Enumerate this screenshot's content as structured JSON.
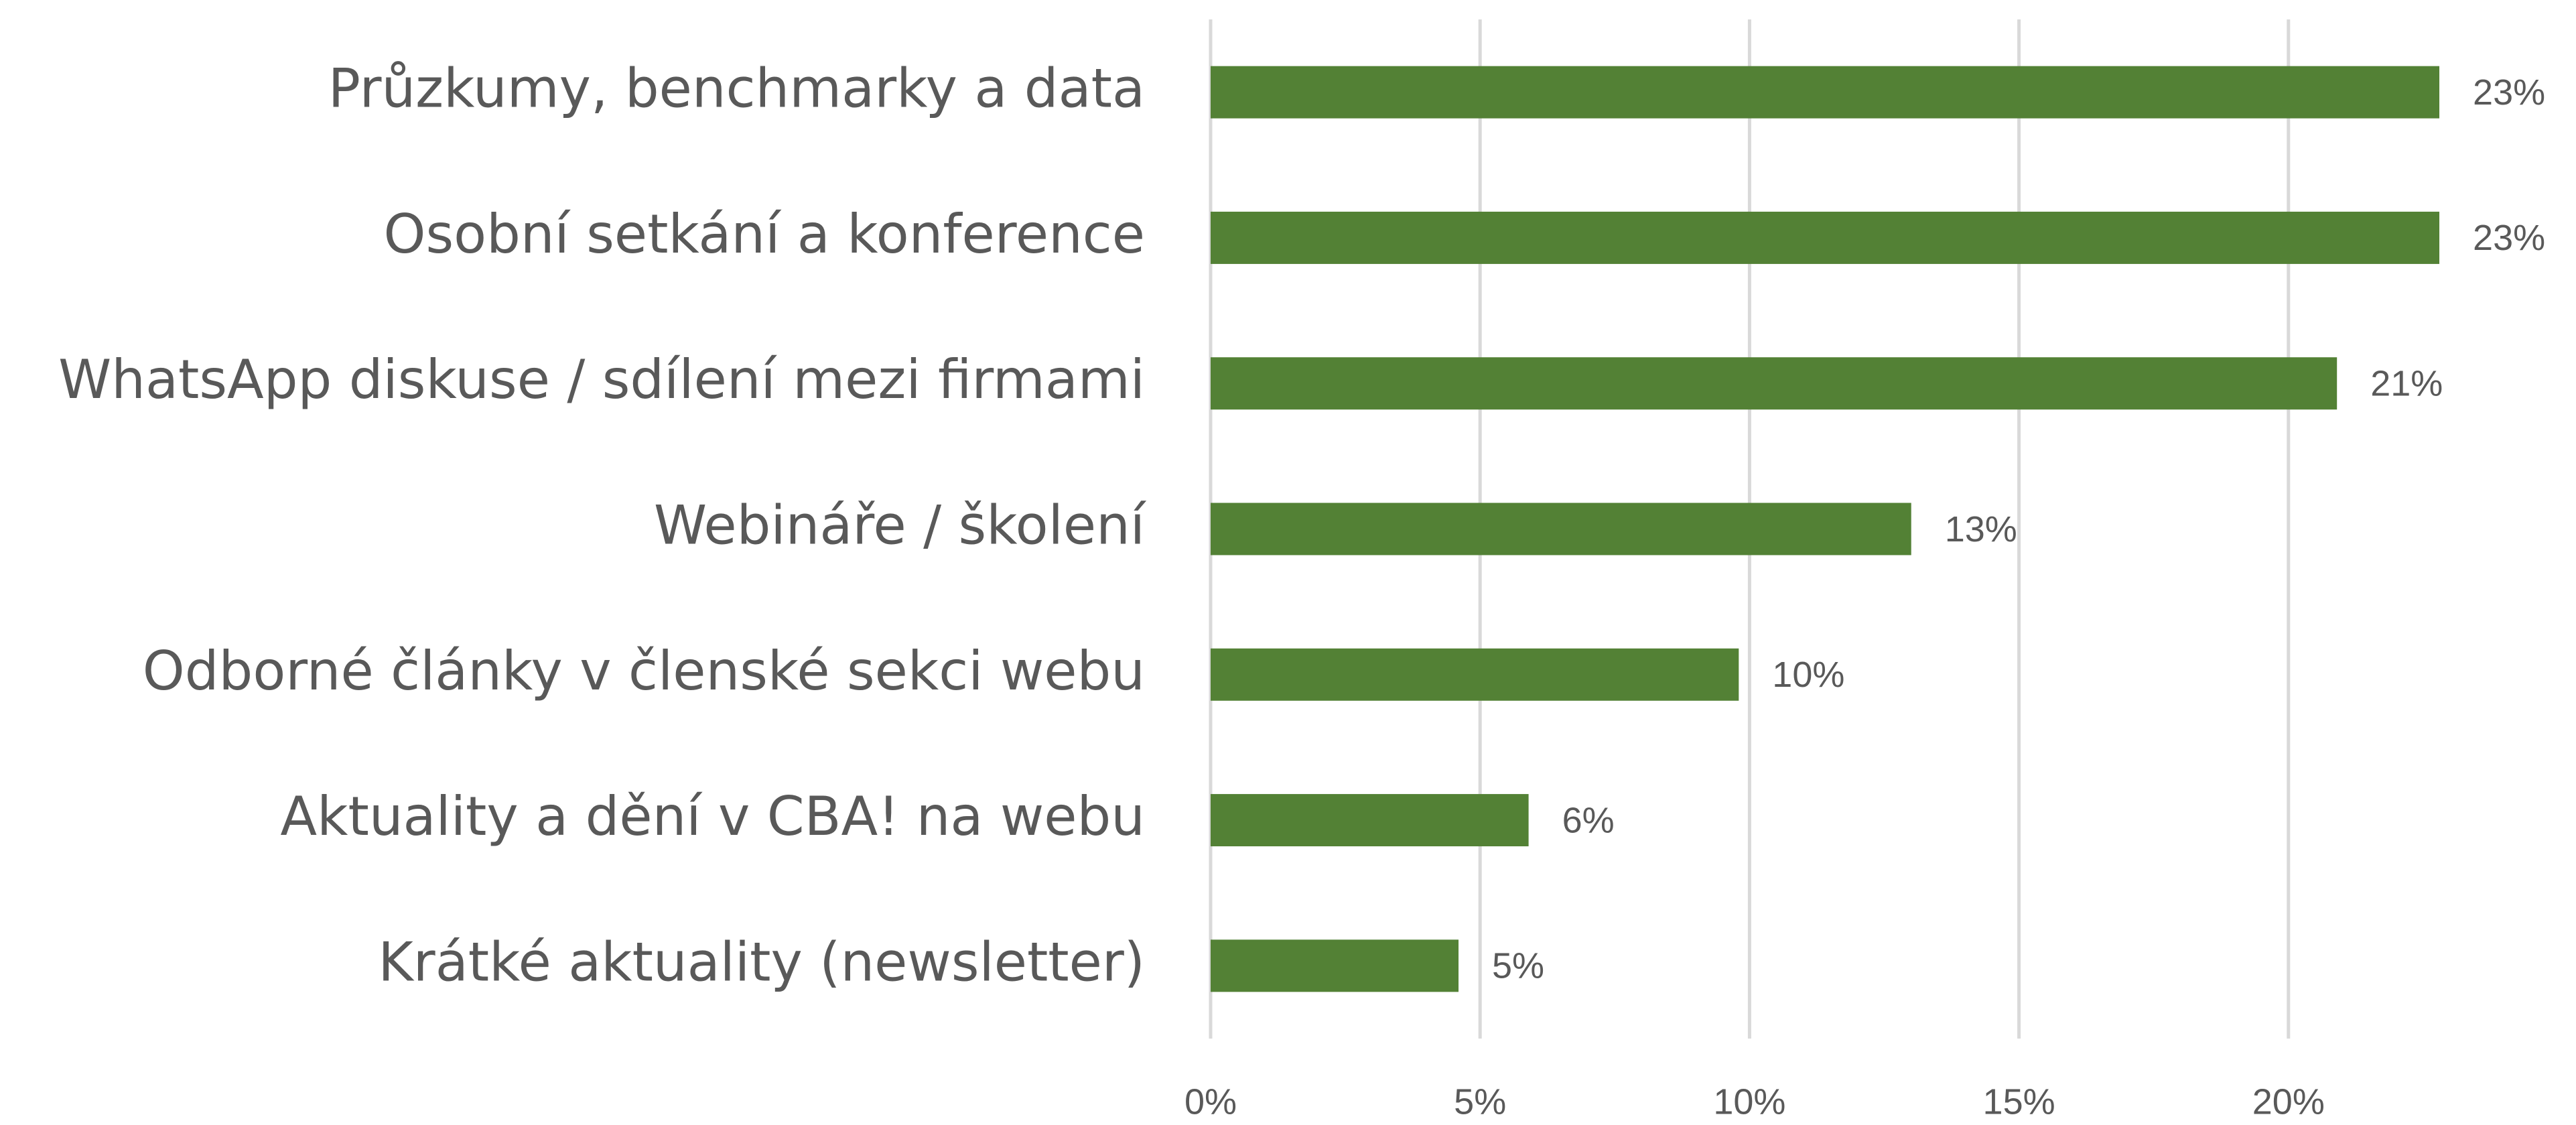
{
  "chart_data": {
    "type": "bar",
    "orientation": "horizontal",
    "categories": [
      "Průzkumy, benchmarky a data",
      "Osobní setkání a konference",
      "WhatsApp diskuse / sdílení mezi firmami",
      "Webináře / školení",
      "Odborné články v členské sekci webu",
      "Aktuality a dění v CBA! na webu",
      "Krátké aktuality (newsletter)"
    ],
    "values": [
      22.8,
      22.8,
      20.9,
      13,
      9.8,
      5.9,
      4.6
    ],
    "value_labels": [
      "23%",
      "23%",
      "21%",
      "13%",
      "10%",
      "6%",
      "5%"
    ],
    "color": "#538135",
    "xlim": [
      0,
      25
    ],
    "xticks": [
      {
        "value": 0,
        "label": "0%"
      },
      {
        "value": 5,
        "label": "5%"
      },
      {
        "value": 10,
        "label": "10%"
      },
      {
        "value": 15,
        "label": "15%"
      },
      {
        "value": 20,
        "label": "20%"
      }
    ],
    "grid": true
  }
}
